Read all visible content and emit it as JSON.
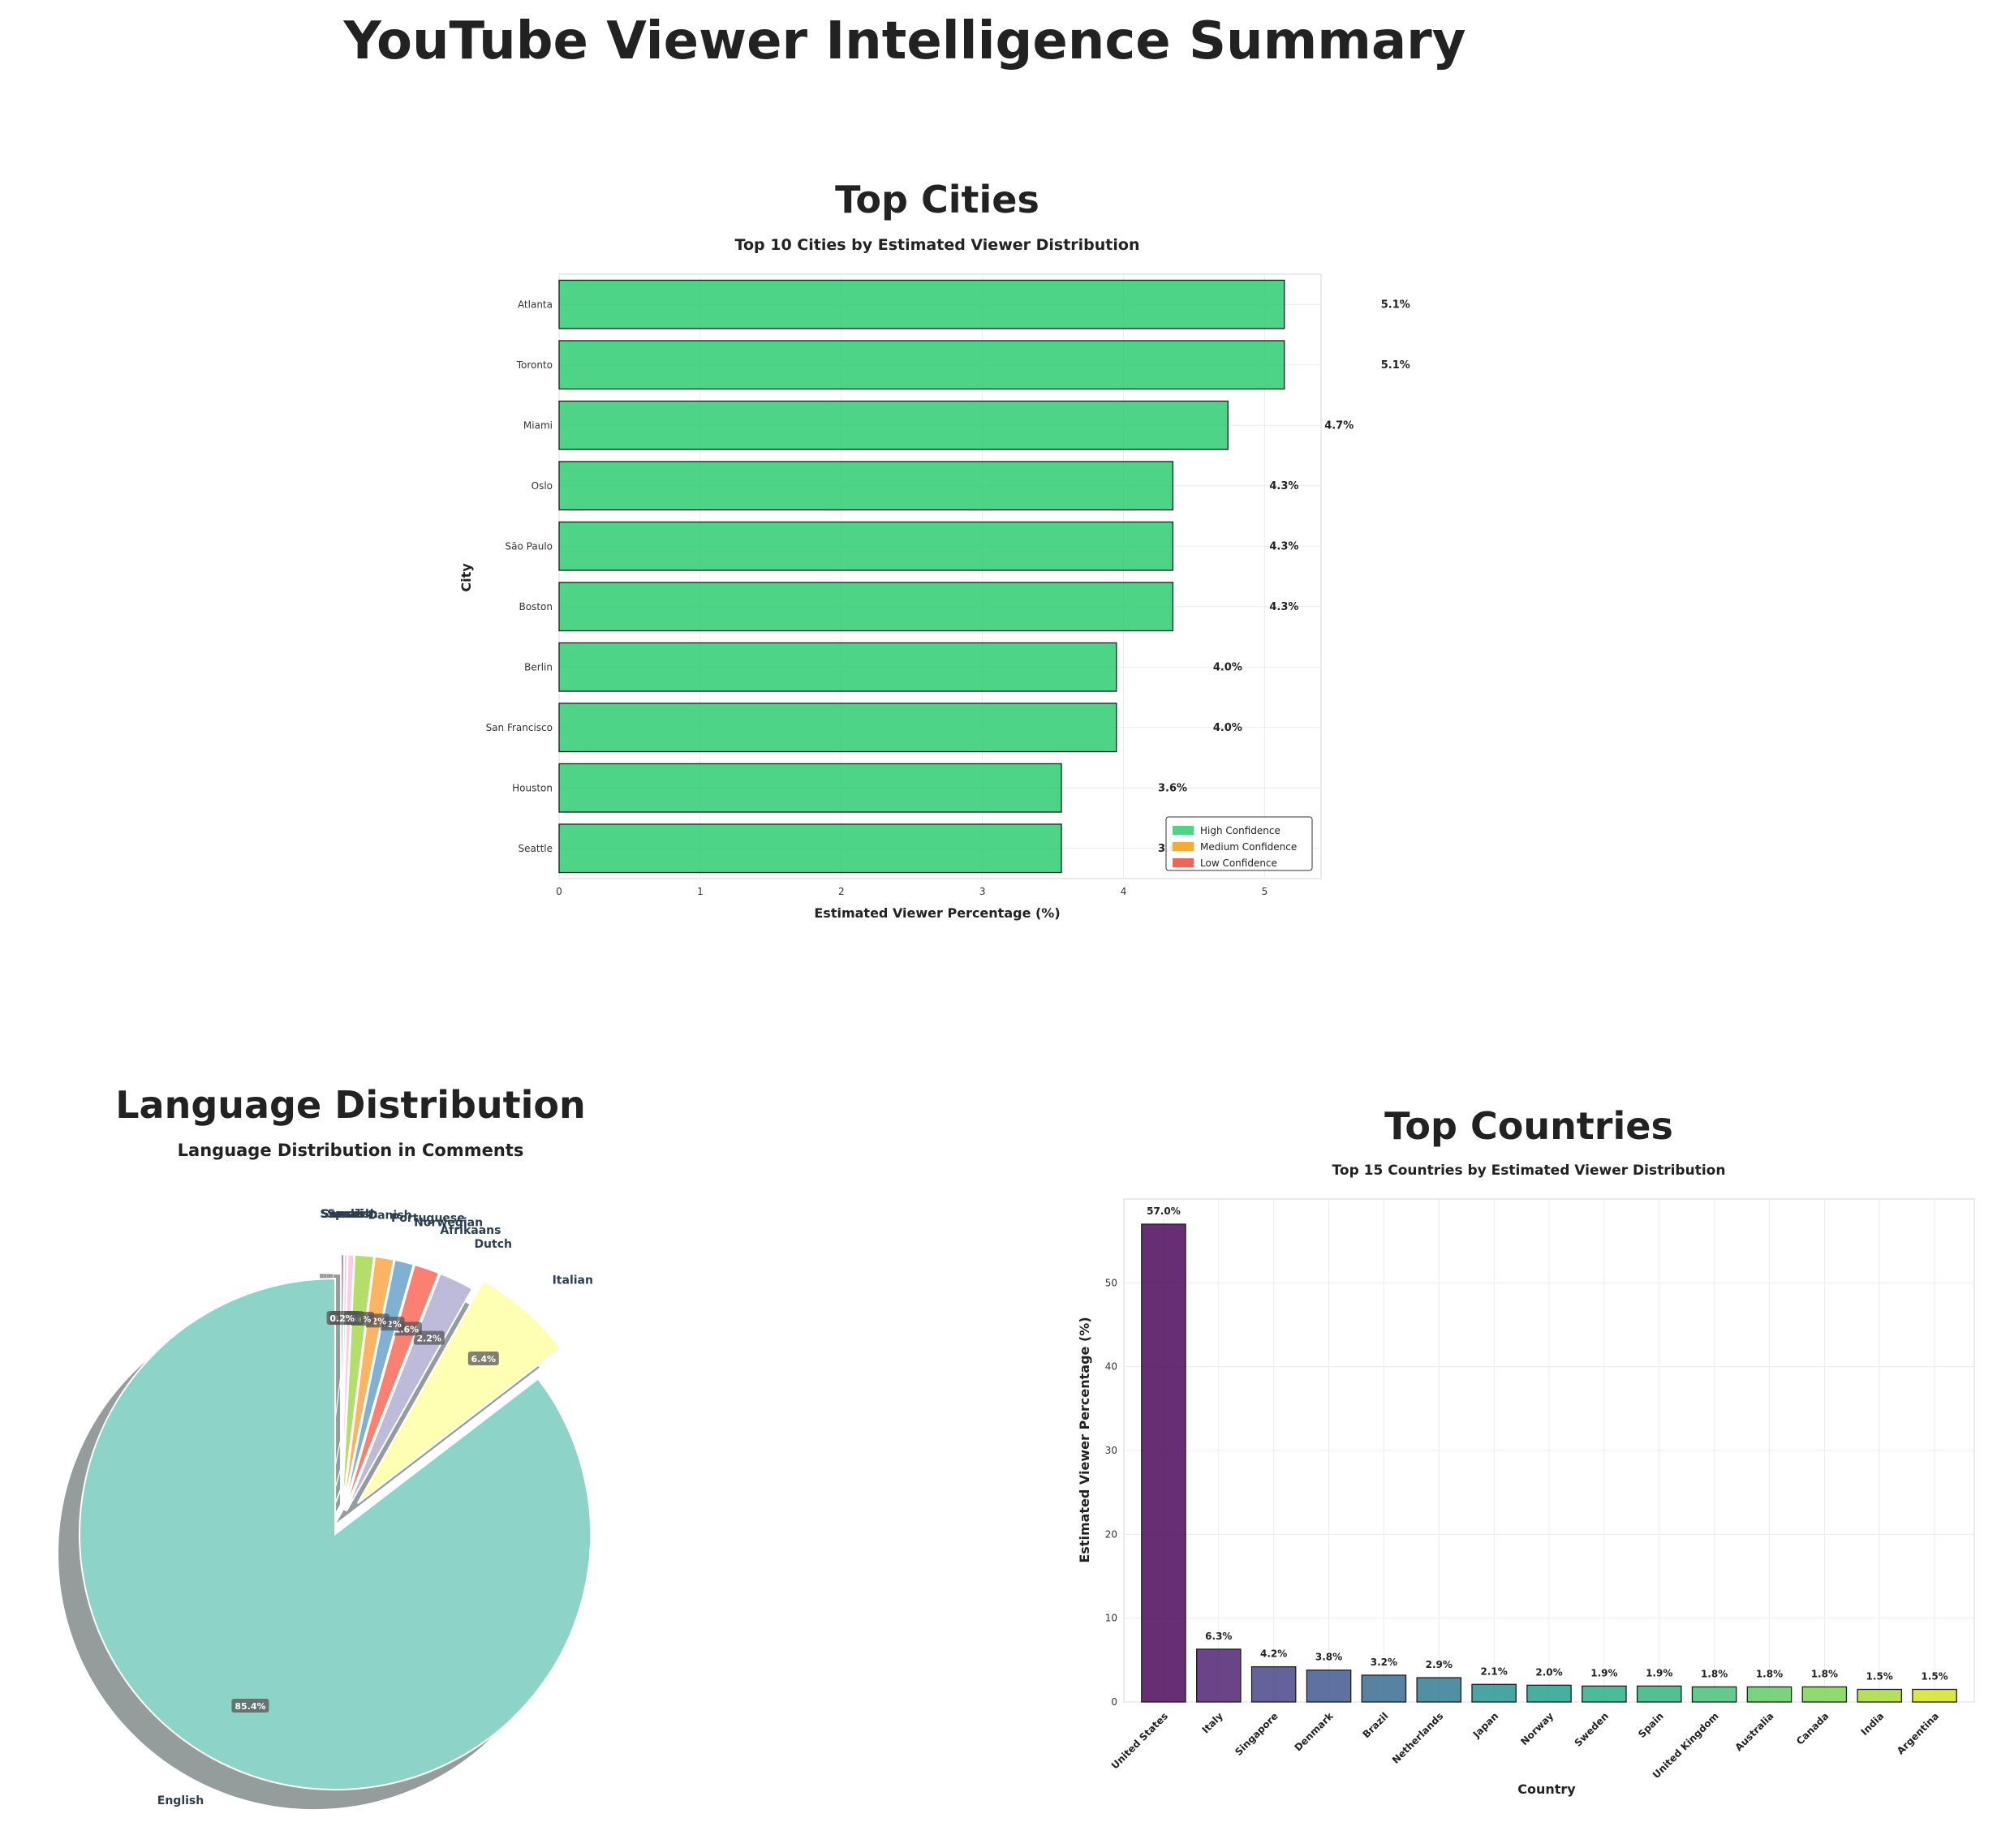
{
  "page_title": "YouTube Viewer Intelligence Summary",
  "chart_data": [
    {
      "id": "cities",
      "type": "bar",
      "orientation": "horizontal",
      "panel_title": "Top Cities",
      "title": "Top 10 Cities by Estimated Viewer Distribution",
      "xlabel": "Estimated Viewer Percentage (%)",
      "ylabel": "City",
      "categories": [
        "Atlanta",
        "Toronto",
        "Miami",
        "Oslo",
        "São Paulo",
        "Boston",
        "Berlin",
        "San Francisco",
        "Houston",
        "Seattle"
      ],
      "values": [
        5.14,
        5.14,
        4.74,
        4.35,
        4.35,
        4.35,
        3.95,
        3.95,
        3.56,
        3.56
      ],
      "value_labels": [
        "5.1%",
        "5.1%",
        "4.7%",
        "4.3%",
        "4.3%",
        "4.3%",
        "4.0%",
        "4.0%",
        "3.6%",
        "3.6%"
      ],
      "confidence": [
        "High",
        "High",
        "High",
        "High",
        "High",
        "High",
        "High",
        "High",
        "High",
        "High"
      ],
      "xlim": [
        0,
        5.4
      ],
      "xticks": [
        0,
        1,
        2,
        3,
        4,
        5
      ],
      "grid": true,
      "legend": {
        "placement": "lower-right",
        "entries": [
          {
            "label": "High Confidence",
            "color": "#2ecc71"
          },
          {
            "label": "Medium Confidence",
            "color": "#f39c12"
          },
          {
            "label": "Low Confidence",
            "color": "#e74c3c"
          }
        ]
      }
    },
    {
      "id": "languages",
      "type": "pie",
      "panel_title": "Language Distribution",
      "title": "Language Distribution in Comments",
      "labels": [
        "English",
        "Italian",
        "Dutch",
        "Afrikaans",
        "Norwegian",
        "Portuguese",
        "Danish",
        "Spanish",
        "Swedish",
        "Somali"
      ],
      "values": [
        85.4,
        6.4,
        2.2,
        1.6,
        1.2,
        1.2,
        1.2,
        0.4,
        0.2,
        0.2
      ],
      "pct_labels": [
        "85.4%",
        "6.4%",
        "2.2%",
        "1.6%",
        "1.2%",
        "1.2%",
        "1.2%",
        "0.4%",
        "0.2%",
        "0.2%"
      ],
      "colors": [
        "#8dd3c7",
        "#ffffb3",
        "#bebada",
        "#fb8072",
        "#80b1d3",
        "#fdb462",
        "#b3de69",
        "#fccde5",
        "#d9d9d9",
        "#bc80bd"
      ],
      "shadow": true
    },
    {
      "id": "countries",
      "type": "bar",
      "orientation": "vertical",
      "panel_title": "Top Countries",
      "title": "Top 15 Countries by Estimated Viewer Distribution",
      "xlabel": "Country",
      "ylabel": "Estimated Viewer Percentage (%)",
      "categories": [
        "United States",
        "Italy",
        "Singapore",
        "Denmark",
        "Brazil",
        "Netherlands",
        "Japan",
        "Norway",
        "Sweden",
        "Spain",
        "United Kingdom",
        "Australia",
        "Canada",
        "India",
        "Argentina"
      ],
      "values": [
        57.0,
        6.3,
        4.2,
        3.8,
        3.2,
        2.9,
        2.1,
        2.0,
        1.9,
        1.9,
        1.8,
        1.8,
        1.8,
        1.5,
        1.5
      ],
      "value_labels": [
        "57.0%",
        "6.3%",
        "4.2%",
        "3.8%",
        "3.2%",
        "2.9%",
        "2.1%",
        "2.0%",
        "1.9%",
        "1.9%",
        "1.8%",
        "1.8%",
        "1.8%",
        "1.5%",
        "1.5%"
      ],
      "colors": [
        "#440154",
        "#481b6d",
        "#433e85",
        "#3b528b",
        "#31688e",
        "#2a788e",
        "#21918c",
        "#1f9e89",
        "#25ac82",
        "#2db27d",
        "#42be71",
        "#5ec962",
        "#7ad151",
        "#a2da37",
        "#d2e21b"
      ],
      "ylim": [
        0,
        60
      ],
      "yticks": [
        0,
        10,
        20,
        30,
        40,
        50
      ],
      "grid": true
    }
  ]
}
